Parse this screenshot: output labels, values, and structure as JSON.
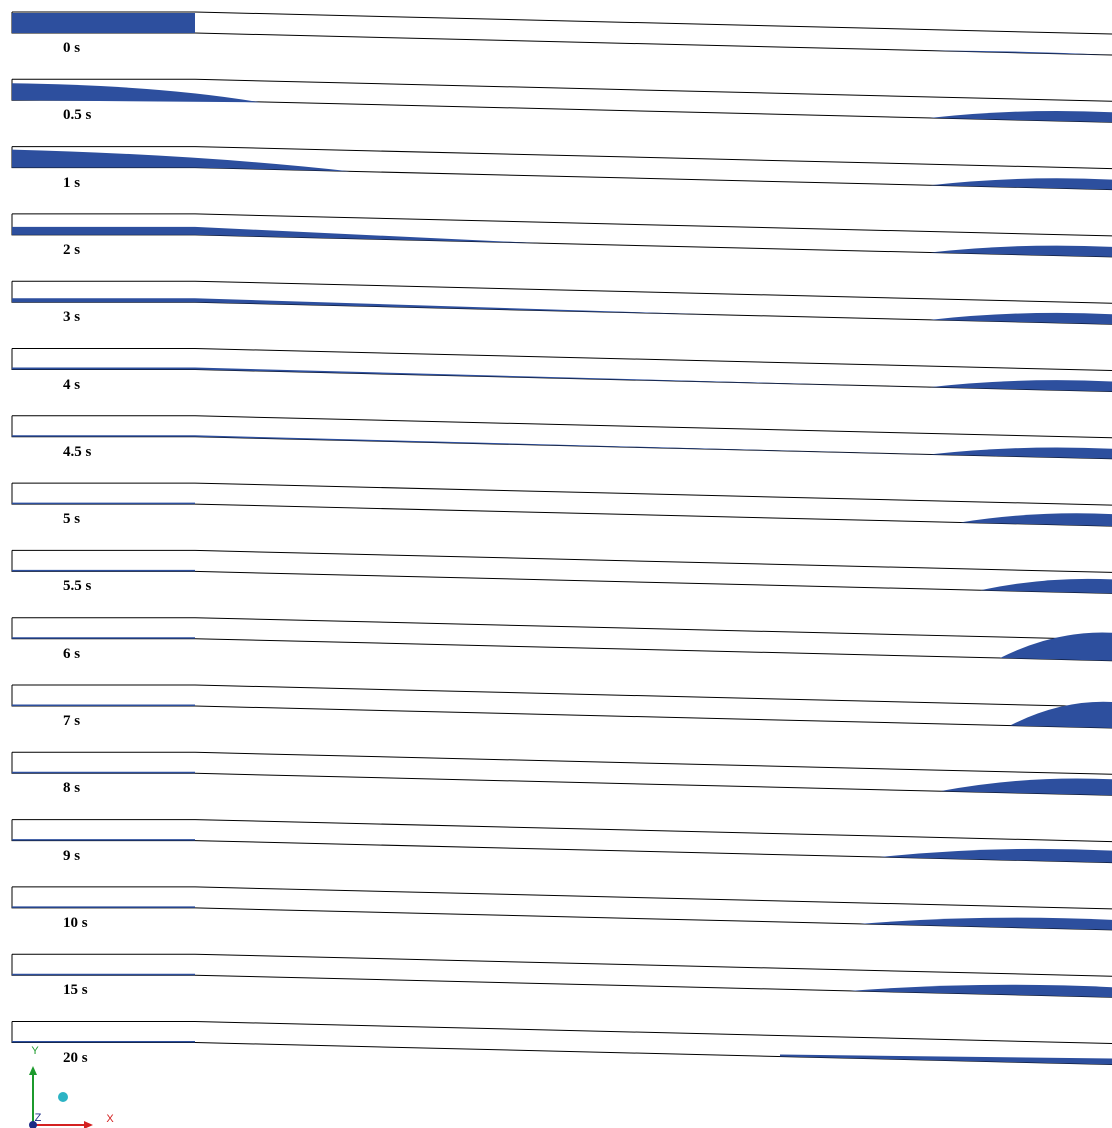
{
  "figure": {
    "water_color": "#2d4f9e",
    "outline_color": "#000000"
  },
  "frames": [
    {
      "time": "0 s"
    },
    {
      "time": "0.5 s"
    },
    {
      "time": "1 s"
    },
    {
      "time": "2 s"
    },
    {
      "time": "3 s"
    },
    {
      "time": "4 s"
    },
    {
      "time": "4.5 s"
    },
    {
      "time": "5 s"
    },
    {
      "time": "5.5 s"
    },
    {
      "time": "6 s"
    },
    {
      "time": "7 s"
    },
    {
      "time": "8 s"
    },
    {
      "time": "9 s"
    },
    {
      "time": "10 s"
    },
    {
      "time": "15 s"
    },
    {
      "time": "20 s"
    }
  ],
  "axes": {
    "x_label": "X",
    "y_label": "Y",
    "z_label": "Z",
    "x_color": "#d42020",
    "y_color": "#1c9a2c",
    "z_color": "#1b2c86",
    "sphere_color": "#2cb3c4"
  }
}
